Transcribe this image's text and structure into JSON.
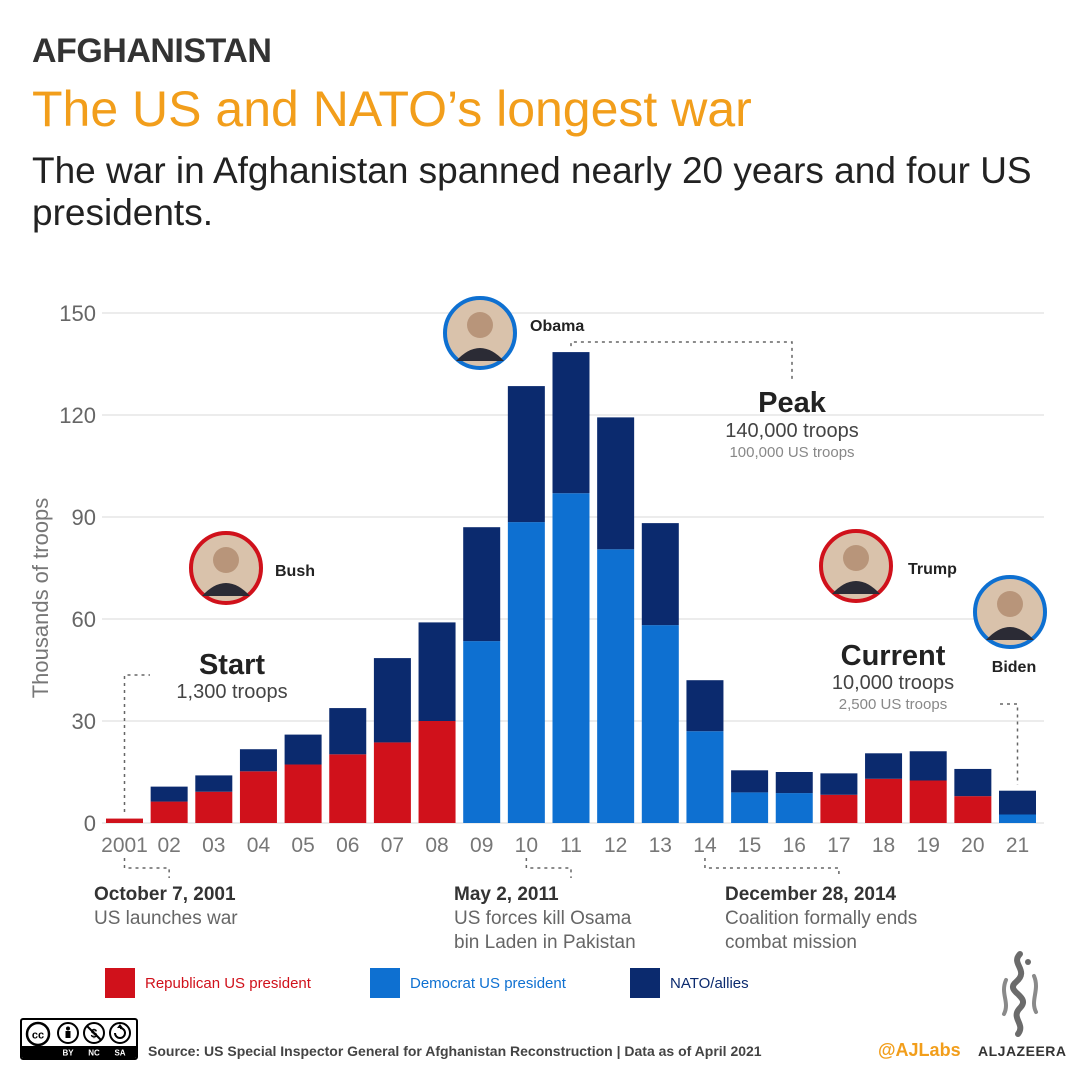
{
  "header": {
    "kicker": "AFGHANISTAN",
    "title": "The US and NATO’s longest war",
    "subtitle": "The war in Afghanistan spanned nearly 20 years and four US presidents."
  },
  "colors": {
    "republican": "#D0111B",
    "democrat": "#0E70D1",
    "nato": "#0B2A6E",
    "accent": "#F29E1B",
    "grid": "#E5E5E5"
  },
  "chart_data": {
    "type": "bar",
    "stacked": true,
    "ylabel": "Thousands of troops",
    "ylim": [
      0,
      150
    ],
    "yticks": [
      0,
      30,
      60,
      90,
      120,
      150
    ],
    "grid": true,
    "categories": [
      "2001",
      "02",
      "03",
      "04",
      "05",
      "06",
      "07",
      "08",
      "09",
      "10",
      "11",
      "12",
      "13",
      "14",
      "15",
      "16",
      "17",
      "18",
      "19",
      "20",
      "21"
    ],
    "us_president_party": [
      "R",
      "R",
      "R",
      "R",
      "R",
      "R",
      "R",
      "R",
      "D",
      "D",
      "D",
      "D",
      "D",
      "D",
      "D",
      "D",
      "R",
      "R",
      "R",
      "R",
      "D"
    ],
    "series": [
      {
        "name": "US troops",
        "values": [
          1.3,
          6.3,
          9.2,
          15.2,
          17.2,
          20.2,
          23.7,
          30.0,
          53.5,
          88.5,
          97.0,
          80.5,
          58.2,
          27.0,
          9.0,
          8.8,
          8.3,
          13.0,
          12.5,
          7.9,
          2.5
        ]
      },
      {
        "name": "NATO/allies",
        "values": [
          0.0,
          4.4,
          4.8,
          6.5,
          8.8,
          13.6,
          24.8,
          29.0,
          33.5,
          40.0,
          41.5,
          38.8,
          30.0,
          15.0,
          6.5,
          6.2,
          6.3,
          7.5,
          8.6,
          8.0,
          7.0
        ]
      }
    ],
    "legend": [
      {
        "label": "Republican US president",
        "color": "#D0111B"
      },
      {
        "label": "Democrat US president",
        "color": "#0E70D1"
      },
      {
        "label": "NATO/allies",
        "color": "#0B2A6E"
      }
    ],
    "annotations": [
      {
        "heading": "Start",
        "value": "1,300 troops",
        "year": "2001"
      },
      {
        "heading": "Peak",
        "value": "140,000 troops",
        "detail": "100,000 US troops",
        "year": "11"
      },
      {
        "heading": "Current",
        "value": "10,000 troops",
        "detail": "2,500 US troops",
        "year": "21"
      }
    ],
    "presidents": [
      {
        "name": "Bush",
        "party": "R"
      },
      {
        "name": "Obama",
        "party": "D"
      },
      {
        "name": "Trump",
        "party": "R"
      },
      {
        "name": "Biden",
        "party": "D"
      }
    ],
    "events": [
      {
        "date": "October 7, 2001",
        "lines": [
          "US launches war"
        ],
        "years": [
          "2001",
          "02"
        ]
      },
      {
        "date": "May 2, 2011",
        "lines": [
          "US forces kill Osama",
          "bin Laden in Pakistan"
        ],
        "years": [
          "10",
          "11"
        ]
      },
      {
        "date": "December 28, 2014",
        "lines": [
          "Coalition formally ends",
          "combat mission"
        ],
        "years": [
          "14",
          "17"
        ]
      }
    ]
  },
  "footer": {
    "source": "Source: US Special Inspector General for Afghanistan Reconstruction | Data as of April 2021",
    "handle": "@AJLabs",
    "brand": "ALJAZEERA",
    "license": [
      "BY",
      "NC",
      "SA"
    ]
  }
}
